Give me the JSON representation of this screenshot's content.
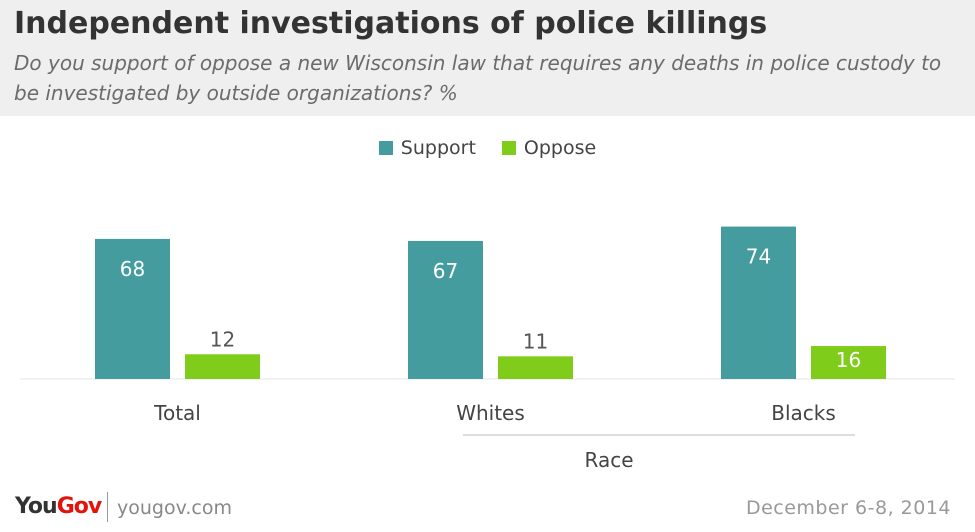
{
  "title": "Independent investigations of police killings",
  "subtitle": "Do you support of oppose a new Wisconsin law that requires any deaths in police custody to be investigated by outside organizations? %",
  "chart_data": {
    "type": "bar",
    "title": "Independent investigations of police killings",
    "categories": [
      "Total",
      "Whites",
      "Blacks"
    ],
    "group_label": "Race",
    "series": [
      {
        "name": "Support",
        "values": [
          68,
          67,
          74
        ],
        "color": "#449c9f"
      },
      {
        "name": "Oppose",
        "values": [
          12,
          11,
          16
        ],
        "color": "#7fcc1b"
      }
    ],
    "ylim": [
      0,
      80
    ],
    "grid": false,
    "legend_position": "top-center"
  },
  "footer": {
    "logo_you": "You",
    "logo_gov": "Gov",
    "url": "yougov.com",
    "date": "December 6-8, 2014"
  }
}
